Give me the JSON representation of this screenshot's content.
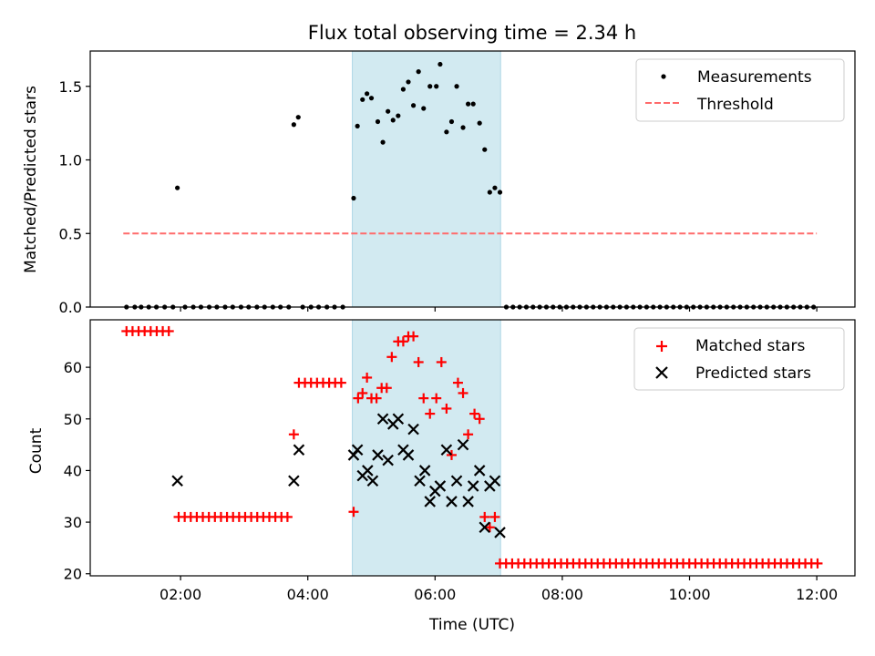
{
  "figure": {
    "title": "Flux total observing time = 2.34 h",
    "xlabel": "Time (UTC)",
    "xticks": [
      {
        "h": 2,
        "label": "02:00"
      },
      {
        "h": 4,
        "label": "04:00"
      },
      {
        "h": 6,
        "label": "06:00"
      },
      {
        "h": 8,
        "label": "08:00"
      },
      {
        "h": 10,
        "label": "10:00"
      },
      {
        "h": 12,
        "label": "12:00"
      }
    ],
    "xlim": [
      0.58,
      12.6
    ],
    "shade_span": [
      4.7,
      7.03
    ],
    "colors": {
      "shade": "#add8e6",
      "measurement": "#000000",
      "threshold": "#ff6b6b",
      "matched": "#ff0000",
      "predicted": "#000000"
    }
  },
  "chart_data": [
    {
      "type": "scatter",
      "ylabel": "Matched/Predicted stars",
      "ylim": [
        0,
        1.74
      ],
      "yticks": [
        "0.0",
        "0.5",
        "1.0",
        "1.5"
      ],
      "ytick_values": [
        0,
        0.5,
        1.0,
        1.5
      ],
      "legend": {
        "position": "top-right",
        "measurements": "Measurements",
        "threshold": "Threshold"
      },
      "threshold": 0.5,
      "threshold_range": [
        1.1,
        12.0
      ],
      "zeros_left": [
        1.15,
        1.28,
        1.38,
        1.5,
        1.62,
        1.75,
        1.88
      ],
      "zeros_mid": [
        2.07,
        2.2,
        2.32,
        2.45,
        2.57,
        2.7,
        2.82,
        2.95,
        3.07,
        3.2,
        3.32,
        3.45,
        3.57,
        3.7
      ],
      "zeros_mid2": [
        3.92,
        4.05,
        4.17,
        4.3,
        4.42,
        4.55
      ],
      "zeros_right": {
        "start": 7.12,
        "end": 12.0,
        "step": 0.105
      },
      "measurements": [
        [
          1.95,
          0.81
        ],
        [
          3.78,
          1.24
        ],
        [
          3.85,
          1.29
        ],
        [
          4.72,
          0.74
        ],
        [
          4.78,
          1.23
        ],
        [
          4.86,
          1.41
        ],
        [
          4.93,
          1.45
        ],
        [
          5.0,
          1.42
        ],
        [
          5.1,
          1.26
        ],
        [
          5.18,
          1.12
        ],
        [
          5.26,
          1.33
        ],
        [
          5.34,
          1.27
        ],
        [
          5.42,
          1.3
        ],
        [
          5.5,
          1.48
        ],
        [
          5.58,
          1.53
        ],
        [
          5.66,
          1.37
        ],
        [
          5.74,
          1.6
        ],
        [
          5.82,
          1.35
        ],
        [
          5.92,
          1.5
        ],
        [
          6.02,
          1.5
        ],
        [
          6.08,
          1.65
        ],
        [
          6.18,
          1.19
        ],
        [
          6.26,
          1.26
        ],
        [
          6.34,
          1.5
        ],
        [
          6.44,
          1.22
        ],
        [
          6.52,
          1.38
        ],
        [
          6.6,
          1.38
        ],
        [
          6.7,
          1.25
        ],
        [
          6.78,
          1.07
        ],
        [
          6.86,
          0.78
        ],
        [
          6.94,
          0.81
        ],
        [
          7.02,
          0.78
        ]
      ]
    },
    {
      "type": "scatter",
      "ylabel": "Count",
      "ylim": [
        19.6,
        69.2
      ],
      "yticks": [
        "20",
        "30",
        "40",
        "50",
        "60"
      ],
      "ytick_values": [
        20,
        30,
        40,
        50,
        60
      ],
      "legend": {
        "position": "top-right",
        "matched": "Matched stars",
        "predicted": "Predicted stars"
      },
      "matched_runs": [
        {
          "start": 1.15,
          "end": 1.82,
          "step": 0.095,
          "y": 67
        },
        {
          "start": 1.97,
          "end": 3.72,
          "step": 0.095,
          "y": 31
        },
        {
          "start": 3.86,
          "end": 4.6,
          "step": 0.095,
          "y": 57
        },
        {
          "start": 7.02,
          "end": 12.05,
          "step": 0.096,
          "y": 22
        }
      ],
      "matched": [
        [
          3.78,
          47
        ],
        [
          4.72,
          32
        ],
        [
          4.79,
          54
        ],
        [
          4.86,
          55
        ],
        [
          4.93,
          58
        ],
        [
          5.0,
          54
        ],
        [
          5.08,
          54
        ],
        [
          5.16,
          56
        ],
        [
          5.24,
          56
        ],
        [
          5.32,
          62
        ],
        [
          5.42,
          65
        ],
        [
          5.5,
          65
        ],
        [
          5.58,
          66
        ],
        [
          5.66,
          66
        ],
        [
          5.74,
          61
        ],
        [
          5.82,
          54
        ],
        [
          5.92,
          51
        ],
        [
          6.02,
          54
        ],
        [
          6.1,
          61
        ],
        [
          6.18,
          52
        ],
        [
          6.26,
          43
        ],
        [
          6.36,
          57
        ],
        [
          6.44,
          55
        ],
        [
          6.52,
          47
        ],
        [
          6.62,
          51
        ],
        [
          6.7,
          50
        ],
        [
          6.78,
          31
        ],
        [
          6.86,
          29
        ],
        [
          6.94,
          31
        ]
      ],
      "predicted": [
        [
          1.95,
          38
        ],
        [
          3.78,
          38
        ],
        [
          3.86,
          44
        ],
        [
          4.72,
          43
        ],
        [
          4.78,
          44
        ],
        [
          4.86,
          39
        ],
        [
          4.94,
          40
        ],
        [
          5.02,
          38
        ],
        [
          5.1,
          43
        ],
        [
          5.18,
          50
        ],
        [
          5.26,
          42
        ],
        [
          5.34,
          49
        ],
        [
          5.42,
          50
        ],
        [
          5.5,
          44
        ],
        [
          5.58,
          43
        ],
        [
          5.66,
          48
        ],
        [
          5.76,
          38
        ],
        [
          5.84,
          40
        ],
        [
          5.92,
          34
        ],
        [
          6.0,
          36
        ],
        [
          6.08,
          37
        ],
        [
          6.18,
          44
        ],
        [
          6.26,
          34
        ],
        [
          6.34,
          38
        ],
        [
          6.44,
          45
        ],
        [
          6.52,
          34
        ],
        [
          6.6,
          37
        ],
        [
          6.7,
          40
        ],
        [
          6.78,
          29
        ],
        [
          6.86,
          37
        ],
        [
          6.94,
          38
        ],
        [
          7.02,
          28
        ]
      ]
    }
  ]
}
